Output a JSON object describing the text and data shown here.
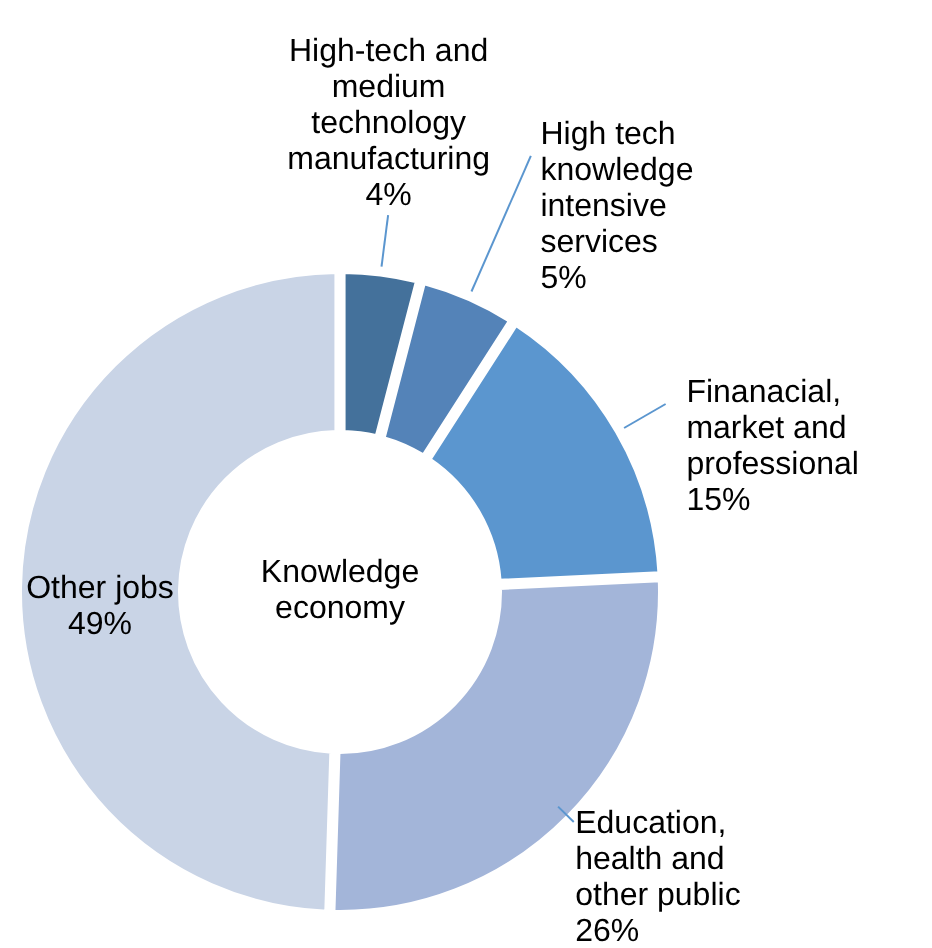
{
  "chart_data": {
    "type": "donut",
    "categories": [
      "High-tech and medium technology manufacturing",
      "High tech knowledge intensive services",
      "Finanacial, market and professional",
      "Education, health and other public",
      "Other jobs"
    ],
    "values": [
      4,
      5,
      15,
      26,
      49
    ],
    "colors": [
      "#44719b",
      "#5483b8",
      "#5b96cf",
      "#a3b5d9",
      "#c9d4e6"
    ],
    "value_labels": [
      "4%",
      "5%",
      "15%",
      "26%",
      "49%"
    ],
    "annotations": [
      "Knowledge economy"
    ]
  }
}
